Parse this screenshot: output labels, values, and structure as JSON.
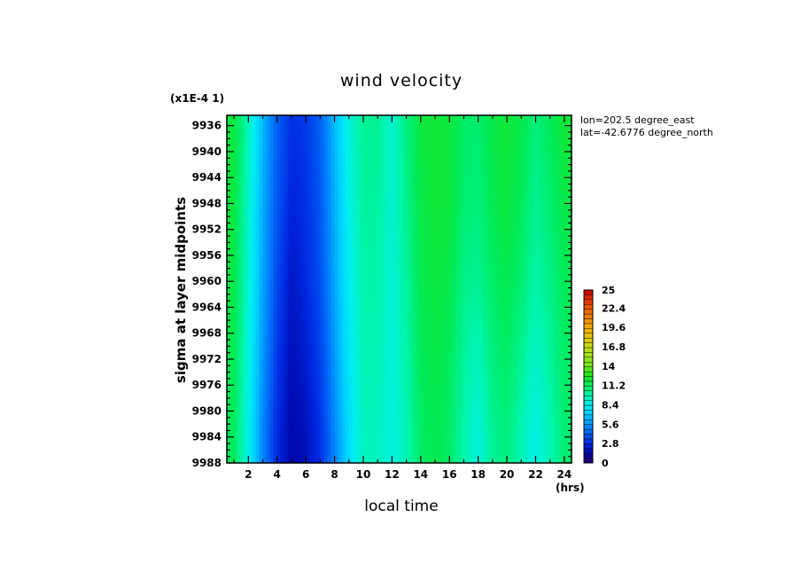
{
  "chart_data": {
    "type": "heatmap",
    "title": "wind velocity",
    "scale_label": "(x1E-4 1)",
    "xlabel": "local time",
    "ylabel": "sigma at layer midpoints",
    "x_unit": "(hrs)",
    "info_lines": [
      "lon=202.5 degree_east",
      "lat=-42.6776 degree_north"
    ],
    "x_ticks": [
      "2",
      "4",
      "6",
      "8",
      "10",
      "12",
      "14",
      "16",
      "18",
      "20",
      "22",
      "24"
    ],
    "y_ticks": [
      "9936",
      "9940",
      "9944",
      "9948",
      "9952",
      "9956",
      "9960",
      "9964",
      "9968",
      "9972",
      "9976",
      "9980",
      "9984",
      "9988"
    ],
    "xlim": [
      0.5,
      24.5
    ],
    "ylim": [
      9988,
      9934.4
    ],
    "colorbar_ticks": [
      "25",
      "22.4",
      "19.6",
      "16.8",
      "14",
      "11.2",
      "8.4",
      "5.6",
      "2.8",
      "0"
    ],
    "colorbar_range": [
      0,
      25
    ],
    "x": [
      1,
      2,
      3,
      4,
      5,
      6,
      7,
      8,
      9,
      10,
      11,
      12,
      13,
      14,
      15,
      16,
      17,
      18,
      19,
      20,
      21,
      22,
      23,
      24
    ],
    "y": [
      9936,
      9948,
      9960,
      9972,
      9984
    ],
    "z": [
      [
        11.8,
        9.5,
        6.5,
        4.2,
        3.0,
        3.2,
        4.2,
        6.5,
        8.8,
        10.2,
        10.2,
        9.0,
        10.5,
        11.8,
        12.0,
        11.8,
        11.0,
        10.8,
        11.6,
        12.0,
        11.5,
        10.6,
        11.2,
        12.0
      ],
      [
        11.8,
        9.2,
        6.2,
        4.0,
        2.6,
        3.0,
        4.0,
        6.2,
        8.6,
        10.0,
        10.0,
        9.0,
        10.3,
        11.6,
        12.0,
        11.8,
        10.8,
        10.6,
        11.4,
        11.8,
        11.2,
        10.2,
        10.8,
        11.6
      ],
      [
        11.6,
        9.0,
        6.0,
        3.6,
        2.2,
        2.8,
        3.8,
        6.0,
        8.3,
        9.8,
        9.8,
        8.9,
        10.0,
        11.4,
        11.8,
        11.5,
        10.4,
        10.2,
        11.0,
        11.4,
        10.8,
        9.8,
        10.4,
        11.3
      ],
      [
        11.4,
        8.8,
        5.6,
        3.2,
        1.9,
        2.4,
        3.4,
        5.6,
        8.0,
        9.6,
        9.6,
        8.8,
        9.8,
        11.2,
        11.6,
        11.2,
        10.0,
        9.4,
        10.6,
        11.0,
        10.2,
        9.2,
        10.0,
        11.0
      ],
      [
        11.2,
        8.5,
        5.2,
        2.8,
        1.6,
        2.0,
        3.0,
        5.2,
        7.6,
        9.4,
        9.4,
        8.7,
        9.6,
        11.0,
        11.4,
        11.0,
        9.8,
        8.8,
        10.2,
        10.6,
        9.6,
        8.6,
        9.6,
        10.8
      ]
    ]
  }
}
